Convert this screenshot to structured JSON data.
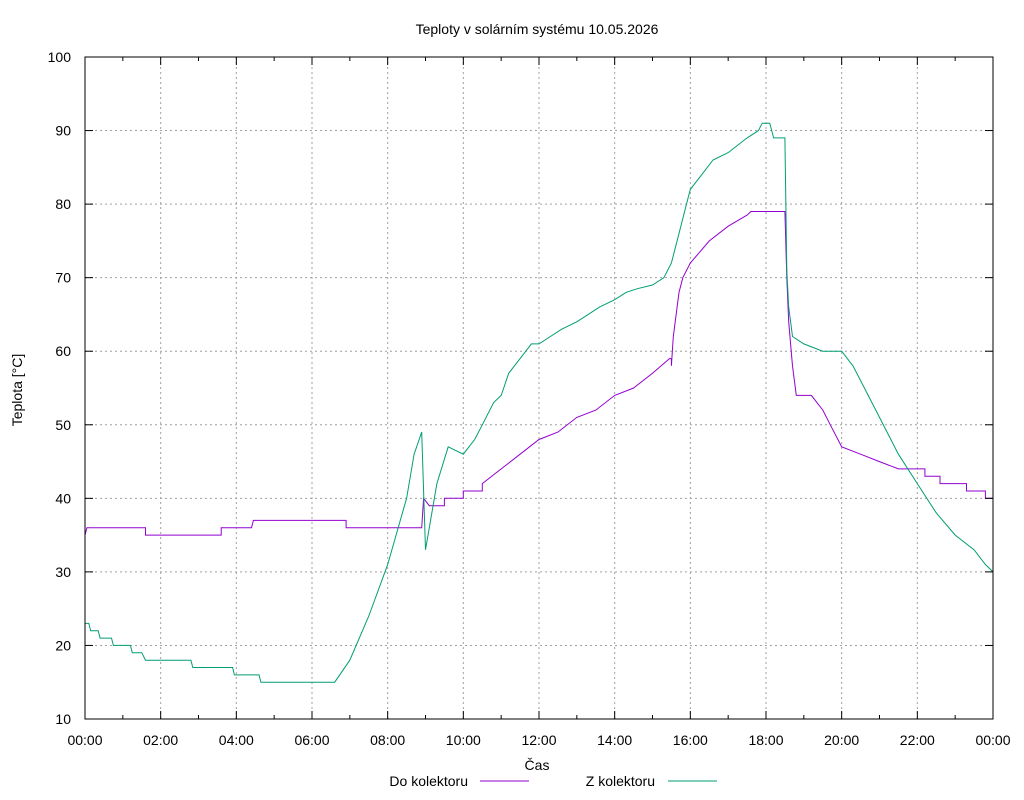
{
  "chart_data": {
    "type": "line",
    "title": "Teploty v solárním systému 10.05.2026",
    "xlabel": "Čas",
    "ylabel": "Teplota [°C]",
    "x_ticks": [
      "00:00",
      "02:00",
      "04:00",
      "06:00",
      "08:00",
      "10:00",
      "12:00",
      "14:00",
      "16:00",
      "18:00",
      "20:00",
      "22:00",
      "00:00"
    ],
    "y_ticks": [
      10,
      20,
      30,
      40,
      50,
      60,
      70,
      80,
      90,
      100
    ],
    "xlim_hours": [
      0,
      24
    ],
    "ylim": [
      10,
      100
    ],
    "grid": true,
    "legend_position": "bottom",
    "series": [
      {
        "name": "Do kolektoru",
        "color": "#9400d3",
        "points": [
          [
            0.0,
            35
          ],
          [
            0.05,
            36
          ],
          [
            1.6,
            36
          ],
          [
            1.6,
            35
          ],
          [
            3.6,
            35
          ],
          [
            3.6,
            36
          ],
          [
            4.4,
            36
          ],
          [
            4.45,
            37
          ],
          [
            6.9,
            37
          ],
          [
            6.9,
            36
          ],
          [
            8.9,
            36
          ],
          [
            8.95,
            40
          ],
          [
            9.1,
            39
          ],
          [
            9.5,
            39
          ],
          [
            9.5,
            40
          ],
          [
            10.0,
            40
          ],
          [
            10.0,
            41
          ],
          [
            10.5,
            41
          ],
          [
            10.5,
            42
          ],
          [
            11.0,
            44
          ],
          [
            11.5,
            46
          ],
          [
            12.0,
            48
          ],
          [
            12.5,
            49
          ],
          [
            13.0,
            51
          ],
          [
            13.5,
            52
          ],
          [
            14.0,
            54
          ],
          [
            14.5,
            55
          ],
          [
            15.0,
            57
          ],
          [
            15.45,
            59
          ],
          [
            15.5,
            59
          ],
          [
            15.5,
            58
          ],
          [
            15.55,
            62
          ],
          [
            15.7,
            68
          ],
          [
            15.8,
            70
          ],
          [
            16.0,
            72
          ],
          [
            16.5,
            75
          ],
          [
            17.0,
            77
          ],
          [
            17.5,
            78.5
          ],
          [
            17.6,
            79
          ],
          [
            18.5,
            79
          ],
          [
            18.55,
            70
          ],
          [
            18.6,
            64
          ],
          [
            18.7,
            58
          ],
          [
            18.8,
            54
          ],
          [
            19.2,
            54
          ],
          [
            19.5,
            52
          ],
          [
            19.7,
            50
          ],
          [
            20.0,
            47
          ],
          [
            20.5,
            46
          ],
          [
            21.0,
            45
          ],
          [
            21.5,
            44
          ],
          [
            22.2,
            44
          ],
          [
            22.2,
            43
          ],
          [
            22.6,
            43
          ],
          [
            22.6,
            42
          ],
          [
            23.3,
            42
          ],
          [
            23.3,
            41
          ],
          [
            23.8,
            41
          ],
          [
            23.8,
            40
          ],
          [
            24.0,
            40
          ]
        ]
      },
      {
        "name": "Z kolektoru",
        "color": "#009e73",
        "points": [
          [
            0.0,
            23
          ],
          [
            0.1,
            23
          ],
          [
            0.15,
            22
          ],
          [
            0.35,
            22
          ],
          [
            0.4,
            21
          ],
          [
            0.7,
            21
          ],
          [
            0.75,
            20
          ],
          [
            1.2,
            20
          ],
          [
            1.25,
            19
          ],
          [
            1.5,
            19
          ],
          [
            1.6,
            18
          ],
          [
            2.8,
            18
          ],
          [
            2.85,
            17
          ],
          [
            3.9,
            17
          ],
          [
            3.95,
            16
          ],
          [
            4.6,
            16
          ],
          [
            4.65,
            15
          ],
          [
            6.6,
            15
          ],
          [
            7.0,
            18
          ],
          [
            7.5,
            24
          ],
          [
            8.0,
            31
          ],
          [
            8.5,
            40
          ],
          [
            8.7,
            46
          ],
          [
            8.9,
            49
          ],
          [
            9.0,
            33
          ],
          [
            9.3,
            42
          ],
          [
            9.6,
            47
          ],
          [
            10.0,
            46
          ],
          [
            10.3,
            48
          ],
          [
            10.5,
            50
          ],
          [
            10.8,
            53
          ],
          [
            11.0,
            54
          ],
          [
            11.2,
            57
          ],
          [
            11.5,
            59
          ],
          [
            11.8,
            61
          ],
          [
            12.0,
            61
          ],
          [
            12.3,
            62
          ],
          [
            12.6,
            63
          ],
          [
            13.0,
            64
          ],
          [
            13.3,
            65
          ],
          [
            13.6,
            66
          ],
          [
            14.0,
            67
          ],
          [
            14.3,
            68
          ],
          [
            14.6,
            68.5
          ],
          [
            15.0,
            69
          ],
          [
            15.3,
            70
          ],
          [
            15.5,
            72
          ],
          [
            15.7,
            76
          ],
          [
            15.9,
            80
          ],
          [
            16.0,
            82
          ],
          [
            16.3,
            84
          ],
          [
            16.6,
            86
          ],
          [
            17.0,
            87
          ],
          [
            17.5,
            89
          ],
          [
            17.8,
            90
          ],
          [
            17.9,
            91
          ],
          [
            18.1,
            91
          ],
          [
            18.2,
            89
          ],
          [
            18.5,
            89
          ],
          [
            18.55,
            71
          ],
          [
            18.6,
            66
          ],
          [
            18.7,
            62
          ],
          [
            19.0,
            61
          ],
          [
            19.5,
            60
          ],
          [
            20.0,
            60
          ],
          [
            20.3,
            58
          ],
          [
            20.6,
            55
          ],
          [
            21.0,
            51
          ],
          [
            21.5,
            46
          ],
          [
            22.0,
            42
          ],
          [
            22.5,
            38
          ],
          [
            23.0,
            35
          ],
          [
            23.5,
            33
          ],
          [
            23.8,
            31
          ],
          [
            24.0,
            30
          ]
        ]
      }
    ]
  }
}
